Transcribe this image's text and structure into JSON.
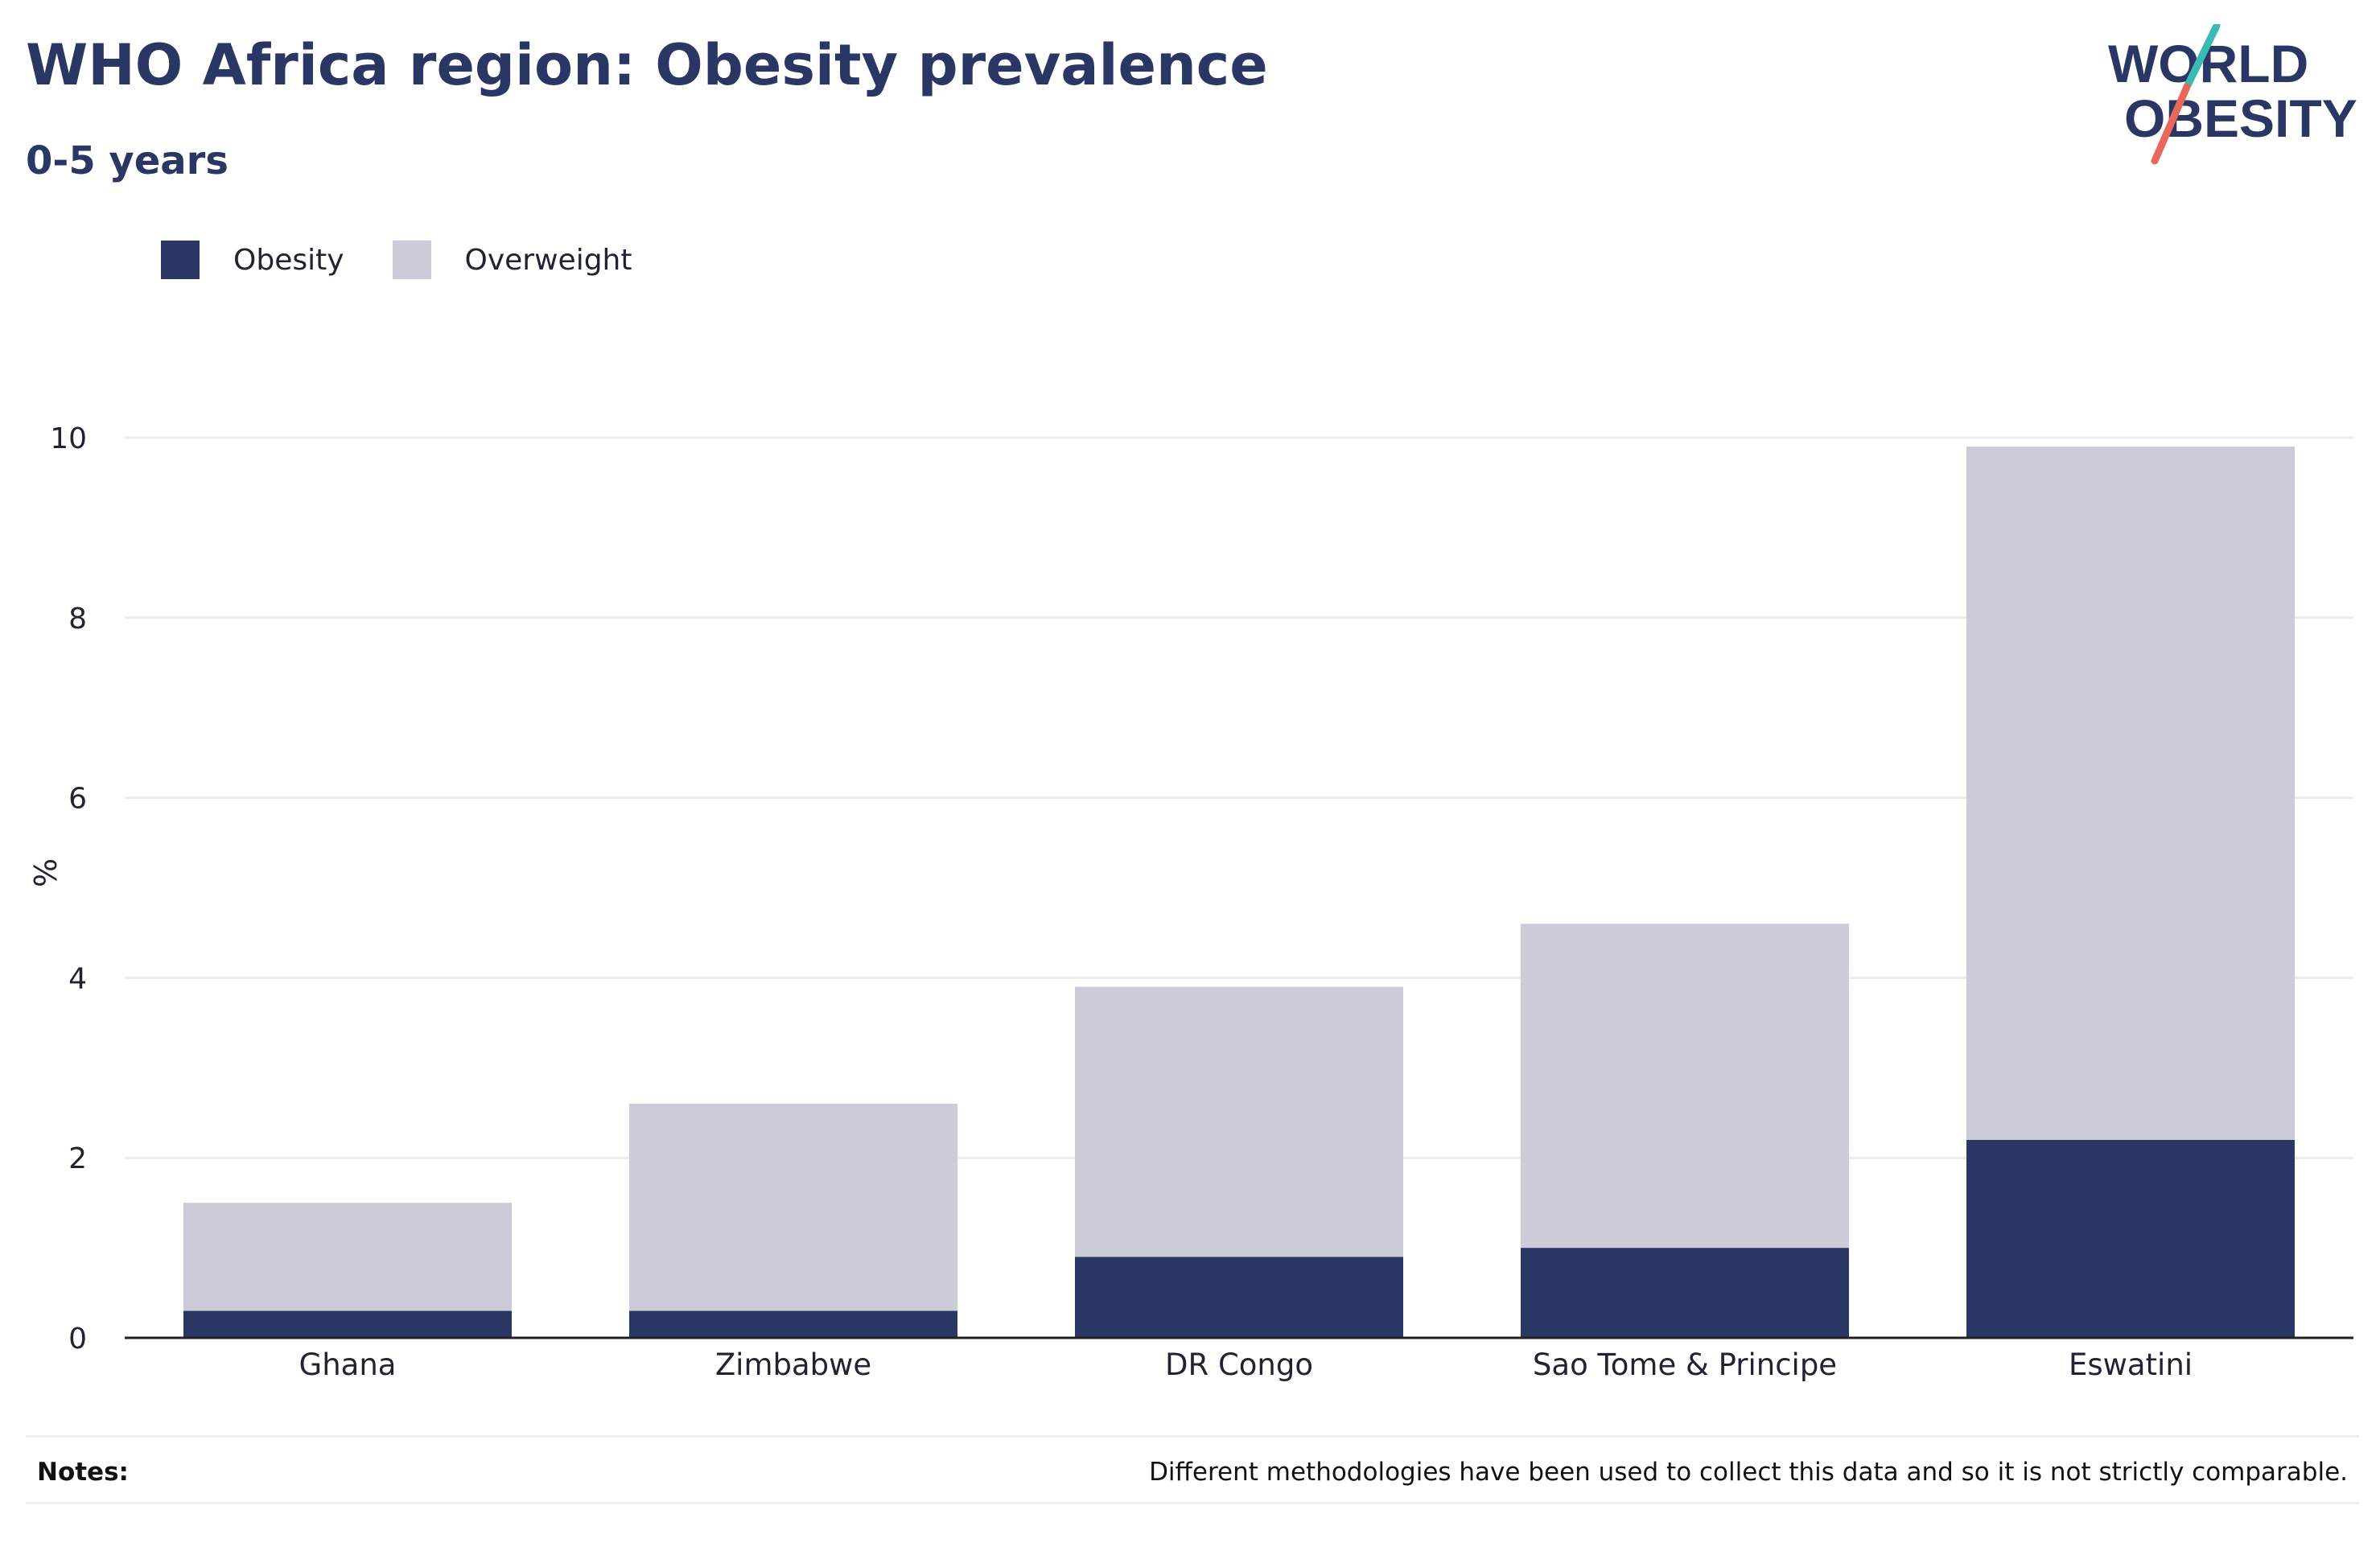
{
  "header": {
    "title": "WHO Africa region: Obesity prevalence",
    "subtitle": "0-5 years"
  },
  "logo": {
    "line1": "WORLD",
    "line2": "OBESITY",
    "text_color": "#2a3764",
    "slash_top_color": "#3bb9b3",
    "slash_bottom_color": "#e8685a"
  },
  "legend": {
    "items": [
      {
        "label": "Obesity",
        "color": "#2a3764"
      },
      {
        "label": "Overweight",
        "color": "#cbccd8"
      }
    ]
  },
  "chart_data": {
    "type": "bar",
    "stacked": true,
    "title": "WHO Africa region: Obesity prevalence",
    "subtitle": "0-5 years",
    "xlabel": "",
    "ylabel": "%",
    "ylim": [
      0,
      10
    ],
    "yticks": [
      0,
      2,
      4,
      6,
      8,
      10
    ],
    "grid": true,
    "legend_position": "top-left",
    "categories": [
      "Ghana",
      "Zimbabwe",
      "DR Congo",
      "Sao Tome & Principe",
      "Eswatini"
    ],
    "series": [
      {
        "name": "Obesity",
        "color": "#2a3764",
        "values": [
          0.3,
          0.3,
          0.9,
          1.0,
          2.2
        ]
      },
      {
        "name": "Overweight",
        "color": "#cbccd8",
        "values": [
          1.2,
          2.3,
          3.0,
          3.6,
          7.7
        ]
      }
    ]
  },
  "notes": {
    "label": "Notes:",
    "text": "Different methodologies have been used to collect this data and so it is not strictly comparable."
  }
}
